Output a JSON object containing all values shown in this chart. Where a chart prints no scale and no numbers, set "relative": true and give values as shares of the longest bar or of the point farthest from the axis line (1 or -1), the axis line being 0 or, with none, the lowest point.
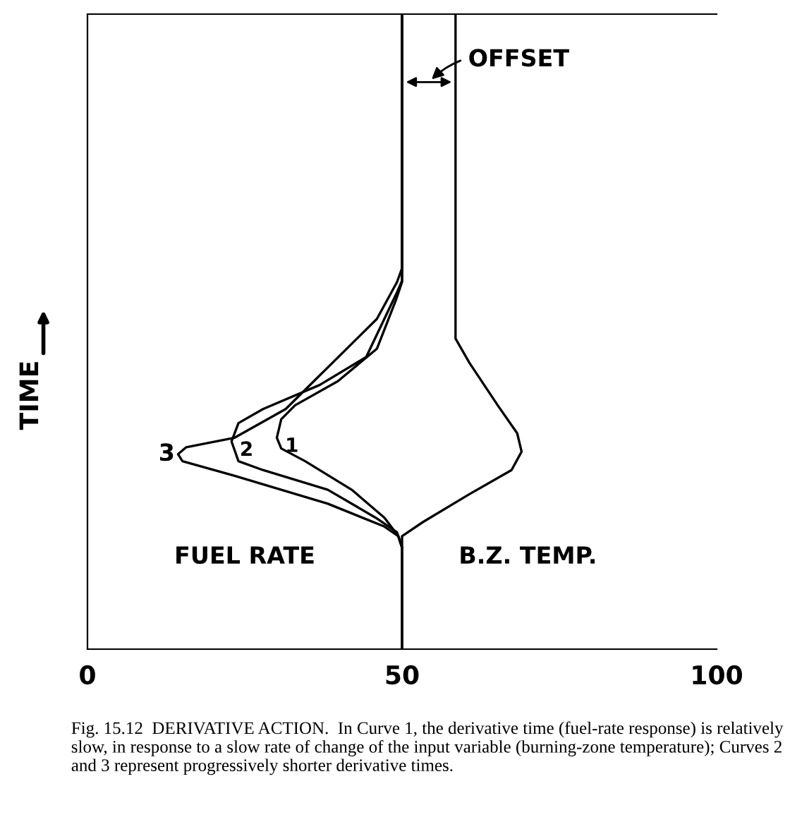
{
  "chart_data": {
    "type": "line",
    "relative": true,
    "xlim": [
      0,
      100
    ],
    "xticks": [
      0,
      50,
      100
    ],
    "ylabel": "TIME",
    "grid": false,
    "legend": false,
    "marker": "none",
    "line_style": "solid",
    "series": [
      {
        "color": "#000000",
        "x": [
          50,
          50,
          49,
          46,
          39.8,
          33,
          30.8,
          30.1,
          30.8,
          34.6,
          42,
          47.2,
          49.4,
          50,
          50
        ],
        "values": [
          1,
          0.578,
          0.549,
          0.473,
          0.422,
          0.384,
          0.362,
          0.333,
          0.316,
          0.296,
          0.251,
          0.207,
          0.178,
          0.16,
          0
        ]
      },
      {
        "color": "#000000",
        "x": [
          50,
          50,
          49.2,
          44.3,
          36.9,
          27.9,
          24,
          22.9,
          24,
          27.9,
          38.2,
          45.8,
          49.2,
          50
        ],
        "values": [
          1,
          0.58,
          0.562,
          0.46,
          0.416,
          0.378,
          0.356,
          0.327,
          0.296,
          0.282,
          0.251,
          0.207,
          0.184,
          0.16
        ]
      },
      {
        "color": "#000000",
        "x": [
          50,
          50,
          49.2,
          46,
          31.5,
          23.4,
          15.7,
          14.4,
          15.1,
          23.4,
          38.2,
          47.2,
          49.4,
          50
        ],
        "values": [
          1,
          0.6,
          0.578,
          0.52,
          0.378,
          0.333,
          0.318,
          0.307,
          0.296,
          0.273,
          0.229,
          0.193,
          0.178,
          0.16
        ]
      },
      {
        "color": "#000000",
        "x": [
          58.5,
          58.5,
          60.7,
          65.2,
          68.3,
          69,
          67.4,
          60.7,
          53.3,
          50,
          50
        ],
        "values": [
          1,
          0.489,
          0.451,
          0.384,
          0.34,
          0.311,
          0.282,
          0.244,
          0.2,
          0.178,
          0
        ]
      }
    ],
    "annotations": [
      {
        "text": "1",
        "x": 30.1,
        "y": 0.333
      },
      {
        "text": "2",
        "x": 22.9,
        "y": 0.327
      },
      {
        "text": "3",
        "x": 14.4,
        "y": 0.307
      },
      {
        "text": "OFFSET",
        "x": 58.5,
        "y": 0.893
      },
      "FUEL RATE",
      "B.Z. TEMP.",
      "Fig. 15.12  DERIVATIVE ACTION.  In Curve 1, the derivative time (fuel-rate response) is relatively slow, in response to a slow rate of change of the input variable (burning-zone temperature); Curves 2 and 3 represent progressively shorter derivative times."
    ]
  }
}
